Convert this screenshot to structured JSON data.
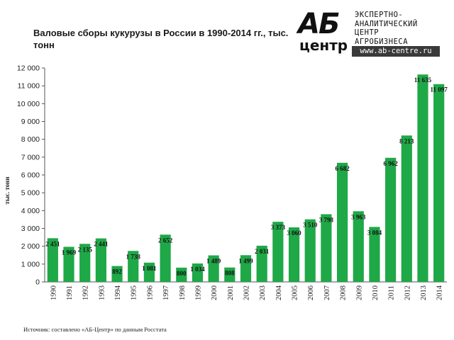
{
  "chart_data": {
    "type": "bar",
    "title": "Валовые сборы кукурузы в России в 1990-2014 гг., тыс. тонн",
    "ylabel": "тыс. тонн",
    "xlabel": "",
    "ylim": [
      0,
      12000
    ],
    "yticks": [
      0,
      1000,
      2000,
      3000,
      4000,
      5000,
      6000,
      7000,
      8000,
      9000,
      10000,
      11000,
      12000
    ],
    "ytick_labels": [
      "0",
      "1 000",
      "2 000",
      "3 000",
      "4 000",
      "5 000",
      "6 000",
      "7 000",
      "8 000",
      "9 000",
      "10 000",
      "11 000",
      "12 000"
    ],
    "grid": false,
    "bar_color": "#1fa847",
    "categories": [
      "1990",
      "1991",
      "1992",
      "1993",
      "1994",
      "1995",
      "1996",
      "1997",
      "1998",
      "1999",
      "2000",
      "2001",
      "2002",
      "2003",
      "2004",
      "2005",
      "2006",
      "2007",
      "2008",
      "2009",
      "2010",
      "2011",
      "2012",
      "2013",
      "2014"
    ],
    "values": [
      2451,
      1969,
      2135,
      2441,
      892,
      1738,
      1081,
      2652,
      800,
      1034,
      1489,
      808,
      1499,
      2031,
      3373,
      3060,
      3510,
      3798,
      6682,
      3963,
      3084,
      6962,
      8213,
      11635,
      11097
    ],
    "data_labels": [
      "2 451",
      "1 969",
      "2 135",
      "2 441",
      "892",
      "1 738",
      "1 081",
      "2 652",
      "800",
      "1 034",
      "1 489",
      "808",
      "1 499",
      "2 031",
      "3 373",
      "3 060",
      "3 510",
      "3 798",
      "6 682",
      "3 963",
      "3 084",
      "6 962",
      "8 213",
      "11 635",
      "11 097"
    ]
  },
  "logo": {
    "mark_top": "АБ",
    "mark_bottom": "центр",
    "line1": "ЭКСПЕРТНО-",
    "line2": "АНАЛИТИЧЕСКИЙ",
    "line3": "ЦЕНТР",
    "line4": "АГРОБИЗНЕСА",
    "url": "www.ab-centre.ru"
  },
  "source": "Источник: составлено «АБ-Центр» по данным Росстата"
}
